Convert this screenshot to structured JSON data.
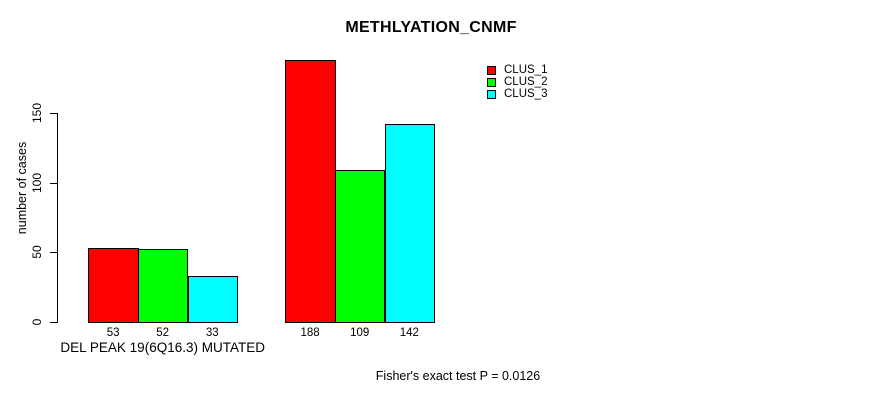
{
  "title": "METHLYATION_CNMF",
  "footer": {
    "annotation": "Fisher's exact test P = 0.0126"
  },
  "colors": {
    "clus_1": "#ff0000",
    "clus_2": "#00ff00",
    "clus_3": "#00ffff",
    "axis": "#000000",
    "background": "#ffffff"
  },
  "chart_data": {
    "type": "bar",
    "title": "METHLYATION_CNMF",
    "xlabel": "",
    "ylabel": "number of cases",
    "categories": [
      "DEL PEAK 19(6Q16.3) MUTATED",
      ""
    ],
    "series": [
      {
        "name": "CLUS_1",
        "color": "#ff0000",
        "values": [
          53,
          188
        ]
      },
      {
        "name": "CLUS_2",
        "color": "#00ff00",
        "values": [
          52,
          109
        ]
      },
      {
        "name": "CLUS_3",
        "color": "#00ffff",
        "values": [
          33,
          142
        ]
      }
    ],
    "bar_value_labels": [
      [
        53,
        52,
        33
      ],
      [
        188,
        109,
        142
      ]
    ],
    "yticks": [
      0,
      50,
      100,
      150
    ],
    "ylim": [
      0,
      190
    ],
    "grid": false,
    "legend_position": "top-right",
    "annotation": "Fisher's exact test P = 0.0126"
  }
}
